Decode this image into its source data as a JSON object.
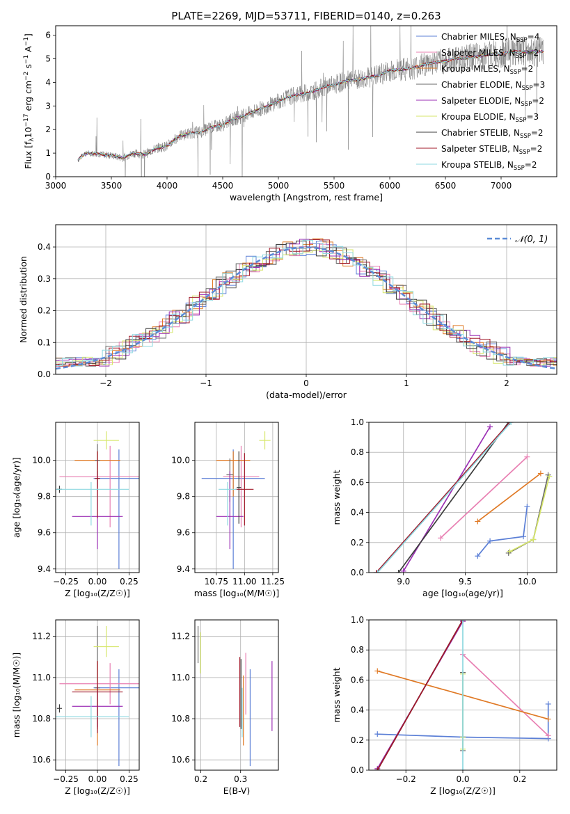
{
  "colors": {
    "chabrier_miles": "#5b7fd6",
    "salpeter_miles": "#e87fb2",
    "kroupa_miles": "#e07a26",
    "chabrier_elodie": "#6a6a6a",
    "salpeter_elodie": "#9b2fb4",
    "kroupa_elodie": "#d6e66a",
    "chabrier_stelib": "#3c3c3c",
    "salpeter_stelib": "#a11a2a",
    "kroupa_stelib": "#8dd8e0",
    "gaussian": "#5b8bd6",
    "spectrum": "#7a7a7a"
  },
  "chart_data": [
    {
      "id": "spectrum",
      "type": "line",
      "title": "PLATE=2269, MJD=53711, FIBERID=0140, z=0.263",
      "xlabel": "wavelength [Angstrom, rest frame]",
      "ylabel": "Flux [f$_\\lambda$ 10$^{-17}$ erg cm$^{-2}$ s$^{-1}$ A$^{-1}$]",
      "ylabel_parts": {
        "a": "Flux [f",
        "b": "λ",
        "c": "10",
        "d": "−17",
        "e": " erg cm",
        "f": "−2",
        "g": " s",
        "h": "−1",
        "i": " A",
        "j": "−1",
        "k": "]"
      },
      "xlim": [
        3000,
        7500
      ],
      "ylim": [
        0,
        6.4
      ],
      "xticks": [
        3000,
        3500,
        4000,
        4500,
        5000,
        5500,
        6000,
        6500,
        7000
      ],
      "yticks": [
        0,
        1,
        2,
        3,
        4,
        5,
        6
      ],
      "observed_x": [
        3200,
        3250,
        3300,
        3400,
        3500,
        3600,
        3700,
        3800,
        3900,
        4000,
        4100,
        4200,
        4300,
        4400,
        4500,
        4600,
        4700,
        4800,
        4900,
        5000,
        5100,
        5200,
        5300,
        5400,
        5500,
        5600,
        5700,
        5800,
        5900,
        6000,
        6100,
        6200,
        6300,
        6400,
        6500,
        6600,
        6700,
        6800,
        6900,
        7000,
        7100,
        7200,
        7300
      ],
      "model_y": [
        0.7,
        0.95,
        1.0,
        0.95,
        0.9,
        0.8,
        1.0,
        0.95,
        1.2,
        1.3,
        1.7,
        1.85,
        1.9,
        2.1,
        2.2,
        2.45,
        2.6,
        2.8,
        3.0,
        3.2,
        3.4,
        3.5,
        3.6,
        3.8,
        3.9,
        4.05,
        4.1,
        4.2,
        4.3,
        4.5,
        4.55,
        4.6,
        4.75,
        4.85,
        4.9,
        5.0,
        5.05,
        5.1,
        5.2,
        5.2,
        5.3,
        5.3,
        5.3
      ],
      "legend": [
        {
          "label": "Chabrier MILES, N",
          "sub": "SSP",
          "tail": "=4",
          "color": "#5b7fd6"
        },
        {
          "label": "Salpeter MILES, N",
          "sub": "SSP",
          "tail": "=2",
          "color": "#e87fb2"
        },
        {
          "label": "Kroupa MILES, N",
          "sub": "SSP",
          "tail": "=2",
          "color": "#e07a26"
        },
        {
          "label": "Chabrier ELODIE, N",
          "sub": "SSP",
          "tail": "=3",
          "color": "#6a6a6a"
        },
        {
          "label": "Salpeter ELODIE, N",
          "sub": "SSP",
          "tail": "=2",
          "color": "#9b2fb4"
        },
        {
          "label": "Kroupa ELODIE, N",
          "sub": "SSP",
          "tail": "=3",
          "color": "#d6e66a"
        },
        {
          "label": "Chabrier STELIB, N",
          "sub": "SSP",
          "tail": "=2",
          "color": "#3c3c3c"
        },
        {
          "label": "Salpeter STELIB, N",
          "sub": "SSP",
          "tail": "=2",
          "color": "#a11a2a"
        },
        {
          "label": "Kroupa STELIB, N",
          "sub": "SSP",
          "tail": "=2",
          "color": "#8dd8e0"
        }
      ]
    },
    {
      "id": "residuals",
      "type": "line",
      "xlabel": "(data-model)/error",
      "ylabel": "Normed distribution",
      "xlim": [
        -2.5,
        2.5
      ],
      "ylim": [
        0,
        0.47
      ],
      "xticks": [
        -2,
        -1,
        0,
        1,
        2
      ],
      "xticklabels": [
        "−2",
        "−1",
        "0",
        "1",
        "2"
      ],
      "yticks": [
        0.0,
        0.1,
        0.2,
        0.3,
        0.4
      ],
      "yticklabels": [
        "0.0",
        "0.1",
        "0.2",
        "0.3",
        "0.4"
      ],
      "legend": "𝒩(0, 1)",
      "legend_position": "top-right",
      "bin_width": 0.1
    },
    {
      "id": "age_vs_Z",
      "type": "scatter",
      "xlabel": "Z [log₁₀(Z/Z☉)]",
      "ylabel": "age  [log₁₀(age/yr)]",
      "xlim": [
        -0.33,
        0.33
      ],
      "ylim": [
        9.38,
        10.21
      ],
      "xticks": [
        -0.25,
        0.0,
        0.25
      ],
      "xticklabels": [
        "−0.25",
        "0.00",
        "0.25"
      ],
      "yticks": [
        9.4,
        9.6,
        9.8,
        10.0
      ],
      "yticklabels": [
        "9.4",
        "9.6",
        "9.8",
        "10.0"
      ],
      "points": [
        {
          "model": "chabrier_miles",
          "x": 0.17,
          "y": 9.9,
          "xerr": 0.2,
          "yerr_lo": 0.5,
          "yerr_hi": 0.16
        },
        {
          "model": "salpeter_miles",
          "x": 0.1,
          "y": 9.91,
          "xerr": 0.4,
          "yerr_lo": 0.28,
          "yerr_hi": 0.17
        },
        {
          "model": "kroupa_miles",
          "x": 0.0,
          "y": 10.0,
          "xerr": 0.18,
          "yerr_lo": 0.2,
          "yerr_hi": 0.05
        },
        {
          "model": "chabrier_elodie",
          "x": 0.0,
          "y": 10.0,
          "xerr": 0.02,
          "yerr_lo": 0.15,
          "yerr_hi": 0.09
        },
        {
          "model": "salpeter_elodie",
          "x": 0.0,
          "y": 9.69,
          "xerr": 0.2,
          "yerr_lo": 0.18,
          "yerr_hi": 0.25
        },
        {
          "model": "kroupa_elodie",
          "x": 0.07,
          "y": 10.11,
          "xerr": 0.1,
          "yerr_lo": 0.05,
          "yerr_hi": 0.05
        },
        {
          "model": "chabrier_stelib",
          "x": -0.3,
          "y": 9.84,
          "xerr": 0.02,
          "yerr_lo": 0.02,
          "yerr_hi": 0.02
        },
        {
          "model": "salpeter_stelib",
          "x": 0.0,
          "y": 9.9,
          "xerr": 0.02,
          "yerr_lo": 0.22,
          "yerr_hi": 0.15
        },
        {
          "model": "kroupa_stelib",
          "x": -0.05,
          "y": 9.84,
          "xerr": 0.3,
          "yerr_lo": 0.2,
          "yerr_hi": 0.04
        }
      ]
    },
    {
      "id": "age_vs_mass",
      "type": "scatter",
      "xlabel": "mass [log₁₀(M/M☉)]",
      "ylabel": "",
      "xlim": [
        10.56,
        11.3
      ],
      "ylim": [
        9.38,
        10.21
      ],
      "xticks": [
        10.75,
        11.0,
        11.25
      ],
      "xticklabels": [
        "10.75",
        "11.00",
        "11.25"
      ],
      "yticks": [
        9.4,
        9.6,
        9.8,
        10.0
      ],
      "yticklabels": [
        "9.4",
        "9.6",
        "9.8",
        "10.0"
      ],
      "points": [
        {
          "model": "chabrier_miles",
          "x": 10.9,
          "y": 9.9,
          "xerr": 0.28,
          "yerr_lo": 0.5,
          "yerr_hi": 0.16
        },
        {
          "model": "salpeter_miles",
          "x": 10.97,
          "y": 9.91,
          "xerr": 0.16,
          "yerr_lo": 0.28,
          "yerr_hi": 0.17
        },
        {
          "model": "kroupa_miles",
          "x": 10.9,
          "y": 10.0,
          "xerr": 0.15,
          "yerr_lo": 0.2,
          "yerr_hi": 0.05
        },
        {
          "model": "chabrier_elodie",
          "x": 10.87,
          "y": 9.92,
          "xerr": 0.03,
          "yerr_lo": 0.15,
          "yerr_hi": 0.09
        },
        {
          "model": "salpeter_elodie",
          "x": 10.87,
          "y": 9.69,
          "xerr": 0.12,
          "yerr_lo": 0.18,
          "yerr_hi": 0.25
        },
        {
          "model": "kroupa_elodie",
          "x": 11.18,
          "y": 10.11,
          "xerr": 0.05,
          "yerr_lo": 0.05,
          "yerr_hi": 0.05
        },
        {
          "model": "chabrier_stelib",
          "x": 10.95,
          "y": 9.85,
          "xerr": 0.02,
          "yerr_lo": 0.2,
          "yerr_hi": 0.2
        },
        {
          "model": "salpeter_stelib",
          "x": 11.0,
          "y": 9.84,
          "xerr": 0.08,
          "yerr_lo": 0.2,
          "yerr_hi": 0.2
        },
        {
          "model": "kroupa_stelib",
          "x": 10.85,
          "y": 9.84,
          "xerr": 0.08,
          "yerr_lo": 0.2,
          "yerr_hi": 0.04
        }
      ]
    },
    {
      "id": "weight_vs_age",
      "type": "line",
      "xlabel": "age  [log₁₀(age/yr)]",
      "ylabel": "mass weight",
      "xlim": [
        8.72,
        10.24
      ],
      "ylim": [
        0,
        1
      ],
      "xticks": [
        9.0,
        9.5,
        10.0
      ],
      "xticklabels": [
        "9.0",
        "9.5",
        "10.0"
      ],
      "yticks": [
        0,
        0.2,
        0.4,
        0.6,
        0.8,
        1.0
      ],
      "yticklabels": [
        "0.0",
        "0.2",
        "0.4",
        "0.6",
        "0.8",
        "1.0"
      ],
      "series": [
        {
          "model": "chabrier_miles",
          "x": [
            9.6,
            9.7,
            9.97,
            10.0
          ],
          "y": [
            0.11,
            0.21,
            0.24,
            0.44
          ]
        },
        {
          "model": "salpeter_miles",
          "x": [
            9.3,
            10.0
          ],
          "y": [
            0.23,
            0.77
          ]
        },
        {
          "model": "kroupa_miles",
          "x": [
            9.6,
            10.11
          ],
          "y": [
            0.34,
            0.66
          ]
        },
        {
          "model": "chabrier_elodie",
          "x": [
            9.85,
            10.05,
            10.17
          ],
          "y": [
            0.13,
            0.22,
            0.65
          ]
        },
        {
          "model": "salpeter_elodie",
          "x": [
            9.0,
            9.7
          ],
          "y": [
            0.01,
            0.97
          ]
        },
        {
          "model": "kroupa_elodie",
          "x": [
            9.86,
            10.05,
            10.18
          ],
          "y": [
            0.14,
            0.22,
            0.64
          ]
        },
        {
          "model": "chabrier_stelib",
          "x": [
            8.96,
            9.85
          ],
          "y": [
            0.0,
            1.0
          ]
        },
        {
          "model": "salpeter_stelib",
          "x": [
            8.78,
            9.86
          ],
          "y": [
            0.0,
            1.0
          ]
        },
        {
          "model": "kroupa_stelib",
          "x": [
            8.79,
            9.87
          ],
          "y": [
            0.0,
            1.0
          ]
        }
      ]
    },
    {
      "id": "mass_vs_Z",
      "type": "scatter",
      "xlabel": "Z [log₁₀(Z/Z☉)]",
      "ylabel": "mass [log₁₀(M/M☉)]",
      "xlim": [
        -0.33,
        0.33
      ],
      "ylim": [
        10.55,
        11.28
      ],
      "xticks": [
        -0.25,
        0.0,
        0.25
      ],
      "xticklabels": [
        "−0.25",
        "0.00",
        "0.25"
      ],
      "yticks": [
        10.6,
        10.8,
        11.0,
        11.2
      ],
      "yticklabels": [
        "10.6",
        "10.8",
        "11.0",
        "11.2"
      ],
      "points": [
        {
          "model": "chabrier_miles",
          "x": 0.17,
          "y": 10.95,
          "xerr": 0.2,
          "yerr_lo": 0.38,
          "yerr_hi": 0.09
        },
        {
          "model": "salpeter_miles",
          "x": 0.1,
          "y": 10.97,
          "xerr": 0.4,
          "yerr_lo": 0.1,
          "yerr_hi": 0.1
        },
        {
          "model": "kroupa_miles",
          "x": 0.0,
          "y": 10.94,
          "xerr": 0.18,
          "yerr_lo": 0.27,
          "yerr_hi": 0.14
        },
        {
          "model": "chabrier_elodie",
          "x": 0.0,
          "y": 10.95,
          "xerr": 0.02,
          "yerr_lo": 0.2,
          "yerr_hi": 0.3
        },
        {
          "model": "salpeter_elodie",
          "x": 0.0,
          "y": 10.86,
          "xerr": 0.2,
          "yerr_lo": 0.1,
          "yerr_hi": 0.1
        },
        {
          "model": "kroupa_elodie",
          "x": 0.07,
          "y": 11.15,
          "xerr": 0.1,
          "yerr_lo": 0.05,
          "yerr_hi": 0.1
        },
        {
          "model": "chabrier_stelib",
          "x": -0.3,
          "y": 10.85,
          "xerr": 0.02,
          "yerr_lo": 0.02,
          "yerr_hi": 0.02
        },
        {
          "model": "salpeter_stelib",
          "x": 0.0,
          "y": 10.93,
          "xerr": 0.2,
          "yerr_lo": 0.2,
          "yerr_hi": 0.15
        },
        {
          "model": "kroupa_stelib",
          "x": -0.05,
          "y": 10.81,
          "xerr": 0.3,
          "yerr_lo": 0.1,
          "yerr_hi": 0.1
        }
      ]
    },
    {
      "id": "mass_vs_ebv",
      "type": "scatter",
      "xlabel": "E(B-V)",
      "ylabel": "",
      "xlim": [
        0.185,
        0.395
      ],
      "ylim": [
        10.55,
        11.28
      ],
      "xticks": [
        0.2,
        0.3
      ],
      "xticklabels": [
        "0.2",
        "0.3"
      ],
      "yticks": [
        10.6,
        10.8,
        11.0,
        11.2
      ],
      "yticklabels": [
        "10.6",
        "10.8",
        "11.0",
        "11.2"
      ],
      "points": [
        {
          "model": "chabrier_miles",
          "x": 0.324,
          "y": 10.81,
          "xerr": 0.0,
          "yerr_lo": 0.24,
          "yerr_hi": 0.23
        },
        {
          "model": "salpeter_miles",
          "x": 0.313,
          "y": 10.97,
          "xerr": 0.0,
          "yerr_lo": 0.15,
          "yerr_hi": 0.15
        },
        {
          "model": "kroupa_miles",
          "x": 0.307,
          "y": 10.84,
          "xerr": 0.0,
          "yerr_lo": 0.17,
          "yerr_hi": 0.17
        },
        {
          "model": "chabrier_elodie",
          "x": 0.193,
          "y": 11.17,
          "xerr": 0.0,
          "yerr_lo": 0.1,
          "yerr_hi": 0.08
        },
        {
          "model": "salpeter_elodie",
          "x": 0.379,
          "y": 10.91,
          "xerr": 0.0,
          "yerr_lo": 0.17,
          "yerr_hi": 0.17
        },
        {
          "model": "kroupa_elodie",
          "x": 0.199,
          "y": 11.12,
          "xerr": 0.0,
          "yerr_lo": 0.1,
          "yerr_hi": 0.1
        },
        {
          "model": "chabrier_stelib",
          "x": 0.301,
          "y": 10.92,
          "xerr": 0.0,
          "yerr_lo": 0.17,
          "yerr_hi": 0.17
        },
        {
          "model": "salpeter_stelib",
          "x": 0.298,
          "y": 10.93,
          "xerr": 0.0,
          "yerr_lo": 0.17,
          "yerr_hi": 0.17
        },
        {
          "model": "kroupa_stelib",
          "x": 0.304,
          "y": 10.83,
          "xerr": 0.0,
          "yerr_lo": 0.12,
          "yerr_hi": 0.12
        }
      ]
    },
    {
      "id": "weight_vs_Z",
      "type": "line",
      "xlabel": "Z [log₁₀(Z/Z☉)]",
      "ylabel": "mass weight",
      "xlim": [
        -0.33,
        0.33
      ],
      "ylim": [
        0,
        1
      ],
      "xticks": [
        -0.2,
        0.0,
        0.2
      ],
      "xticklabels": [
        "−0.2",
        "0.0",
        "0.2"
      ],
      "yticks": [
        0,
        0.2,
        0.4,
        0.6,
        0.8,
        1.0
      ],
      "yticklabels": [
        "0.0",
        "0.2",
        "0.4",
        "0.6",
        "0.8",
        "1.0"
      ],
      "series": [
        {
          "model": "chabrier_miles",
          "x": [
            -0.3,
            0.0,
            0.3,
            0.3
          ],
          "y": [
            0.24,
            0.22,
            0.21,
            0.44
          ]
        },
        {
          "model": "salpeter_miles",
          "x": [
            0.0,
            0.3
          ],
          "y": [
            0.77,
            0.23
          ]
        },
        {
          "model": "kroupa_miles",
          "x": [
            -0.3,
            0.3
          ],
          "y": [
            0.66,
            0.34
          ]
        },
        {
          "model": "chabrier_elodie",
          "x": [
            0.0,
            0.0,
            0.0
          ],
          "y": [
            0.13,
            0.22,
            0.65
          ]
        },
        {
          "model": "salpeter_elodie",
          "x": [
            -0.3,
            0.0
          ],
          "y": [
            0.01,
            0.99
          ]
        },
        {
          "model": "kroupa_elodie",
          "x": [
            0.0,
            0.0,
            0.0
          ],
          "y": [
            0.14,
            0.22,
            0.64
          ]
        },
        {
          "model": "chabrier_stelib",
          "x": [
            -0.3,
            0.0
          ],
          "y": [
            0.0,
            1.0
          ]
        },
        {
          "model": "salpeter_stelib",
          "x": [
            -0.3,
            0.0
          ],
          "y": [
            0.0,
            1.0
          ]
        },
        {
          "model": "kroupa_stelib",
          "x": [
            0.0,
            0.0
          ],
          "y": [
            0.0,
            1.0
          ]
        }
      ]
    }
  ]
}
